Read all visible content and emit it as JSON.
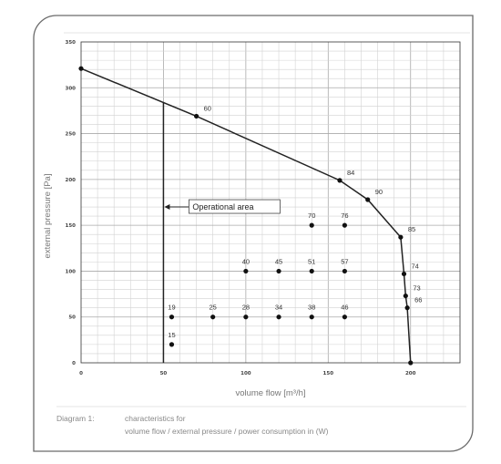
{
  "chart_data": {
    "type": "line",
    "xlabel": "volume flow [m³/h]",
    "ylabel": "external pressure [Pa]",
    "xlim": [
      0,
      230
    ],
    "ylim": [
      0,
      350
    ],
    "x_ticks": [
      "0",
      "50",
      "100",
      "150",
      "200"
    ],
    "y_ticks": [
      "0",
      "50",
      "100",
      "150",
      "200",
      "250",
      "300",
      "350"
    ],
    "grid": true,
    "series": [
      {
        "values": [
          {
            "x": 0,
            "y": 321
          },
          {
            "x": 70,
            "y": 269,
            "label": "60"
          },
          {
            "x": 157,
            "y": 199,
            "label": "84"
          },
          {
            "x": 174,
            "y": 178,
            "label": "90"
          },
          {
            "x": 194,
            "y": 137,
            "label": "85"
          },
          {
            "x": 196,
            "y": 97,
            "label": "74"
          },
          {
            "x": 197,
            "y": 73,
            "label": "73"
          },
          {
            "x": 198,
            "y": 60,
            "label": "66"
          },
          {
            "x": 200,
            "y": 0
          }
        ]
      }
    ],
    "boundary_line": {
      "x": 50,
      "y_from": 0,
      "y_to": 284
    },
    "operating_points": [
      {
        "x": 55,
        "y": 20,
        "label": "15"
      },
      {
        "x": 55,
        "y": 50,
        "label": "19"
      },
      {
        "x": 80,
        "y": 50,
        "label": "25"
      },
      {
        "x": 100,
        "y": 50,
        "label": "28"
      },
      {
        "x": 120,
        "y": 50,
        "label": "34"
      },
      {
        "x": 140,
        "y": 50,
        "label": "38"
      },
      {
        "x": 160,
        "y": 50,
        "label": "46"
      },
      {
        "x": 100,
        "y": 100,
        "label": "40"
      },
      {
        "x": 120,
        "y": 100,
        "label": "45"
      },
      {
        "x": 140,
        "y": 100,
        "label": "51"
      },
      {
        "x": 160,
        "y": 100,
        "label": "57"
      },
      {
        "x": 140,
        "y": 150,
        "label": "70"
      },
      {
        "x": 160,
        "y": 150,
        "label": "76"
      }
    ],
    "annotation": {
      "text": "Operational area",
      "arrow_to": {
        "x": 50,
        "y": 167
      }
    }
  },
  "caption": {
    "number": "Diagram 1:",
    "line1": "characteristics for",
    "line2": "volume flow / external pressure / power consumption in (W)"
  }
}
